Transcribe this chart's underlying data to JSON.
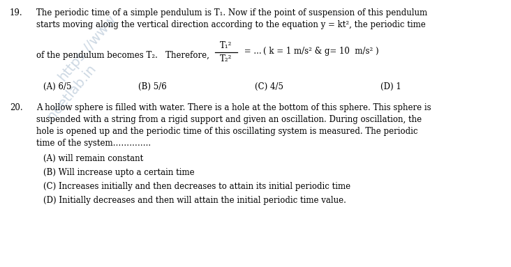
{
  "background_color": "#ffffff",
  "text_color": "#000000",
  "watermark_color": "#b8c8d8",
  "fig_width": 7.32,
  "fig_height": 3.83,
  "dpi": 100,
  "q19_number": "19.",
  "q19_line1": "The periodic time of a simple pendulum is T₁. Now if the point of suspension of this pendulum",
  "q19_line2": "starts moving along the vertical direction according to the equation y = kt², the periodic time",
  "q19_line3_pre": "of the pendulum becomes T₂.   Therefore,",
  "q19_frac_num": "T₁²",
  "q19_frac_den": "T₂²",
  "q19_line3_eq": " = ... ( k = 1 m/s² & g= 10  m/s² )",
  "q19_A": "(A) 6/5",
  "q19_B": "(B) 5/6",
  "q19_C": "(C) 4/5",
  "q19_D": "(D) 1",
  "q20_number": "20.",
  "q20_line1": "A hollow sphere is filled with water. There is a hole at the bottom of this sphere. This sphere is",
  "q20_line2": "suspended with a string from a rigid support and given an oscillation. During oscillation, the",
  "q20_line3": "hole is opened up and the periodic time of this oscillating system is measured. The periodic",
  "q20_line4": "time of the system…………..",
  "q20_A": "(A) will remain constant",
  "q20_B": "(B) Will increase upto a certain time",
  "q20_C": "(C) Increases initially and then decreases to attain its initial periodic time",
  "q20_D": "(D) Initially decreases and then will attain the initial periodic time value."
}
